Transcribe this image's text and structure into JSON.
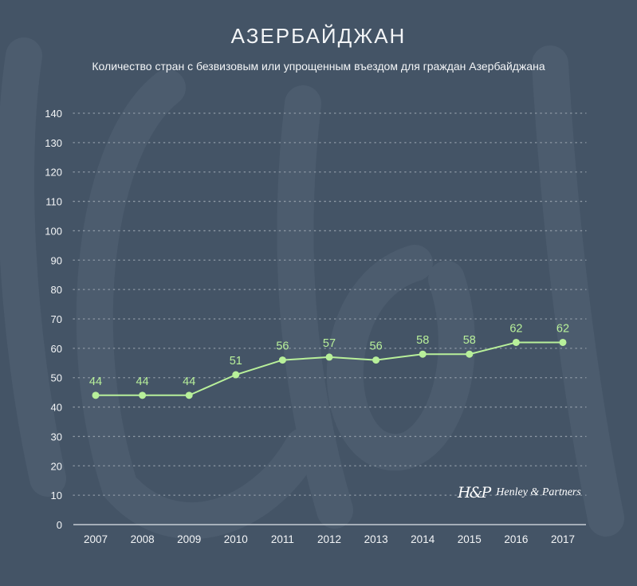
{
  "header": {
    "title": "АЗЕРБАЙДЖАН",
    "subtitle": "Количество стран с безвизовым или упрощенным въездом для граждан Азербайджана"
  },
  "brand": {
    "mark": "H&P",
    "name": "Henley & Partners"
  },
  "colors": {
    "background": "#445466",
    "line": "#b8f09a",
    "text": "#f3f5f7",
    "grid": "#8f9aa6"
  },
  "chart_data": {
    "type": "line",
    "title": "АЗЕРБАЙДЖАН",
    "subtitle": "Количество стран с безвизовым или упрощенным въездом для граждан Азербайджана",
    "xlabel": "",
    "ylabel": "",
    "x": [
      "2007",
      "2008",
      "2009",
      "2010",
      "2011",
      "2012",
      "2013",
      "2014",
      "2015",
      "2016",
      "2017"
    ],
    "series": [
      {
        "values": [
          44,
          44,
          44,
          51,
          56,
          57,
          56,
          58,
          58,
          62,
          62
        ]
      }
    ],
    "ylim": [
      0,
      140
    ],
    "yticks": [
      0,
      10,
      20,
      30,
      40,
      50,
      60,
      70,
      80,
      90,
      100,
      110,
      120,
      130,
      140
    ],
    "grid": true,
    "data_labels": true
  }
}
